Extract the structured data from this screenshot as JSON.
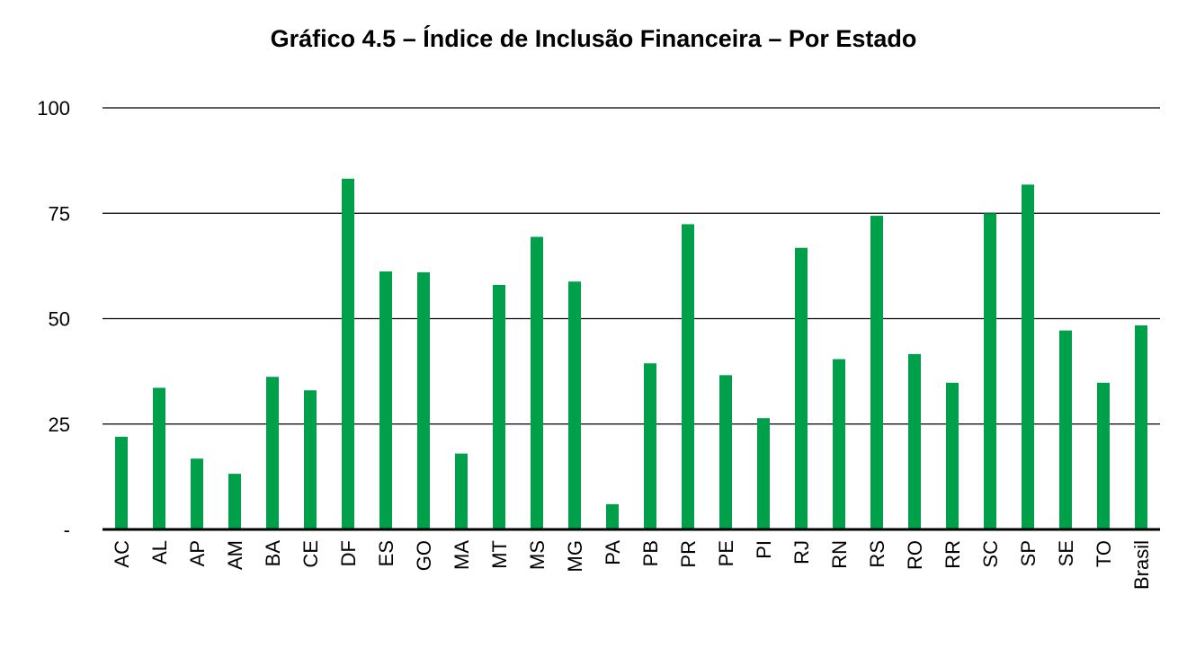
{
  "chart_data": {
    "type": "bar",
    "title": "Gráfico 4.5 – Índice de Inclusão Financeira – Por Estado",
    "xlabel": "",
    "ylabel": "",
    "ylim": [
      0,
      100
    ],
    "yticks": [
      {
        "value": 0,
        "label": "-"
      },
      {
        "value": 25,
        "label": "25"
      },
      {
        "value": 50,
        "label": "50"
      },
      {
        "value": 75,
        "label": "75"
      },
      {
        "value": 100,
        "label": "100"
      }
    ],
    "grid": true,
    "bar_color": "#00A04A",
    "categories": [
      "AC",
      "AL",
      "AP",
      "AM",
      "BA",
      "CE",
      "DF",
      "ES",
      "GO",
      "MA",
      "MT",
      "MS",
      "MG",
      "PA",
      "PB",
      "PR",
      "PE",
      "PI",
      "RJ",
      "RN",
      "RS",
      "RO",
      "RR",
      "SC",
      "SP",
      "SE",
      "TO",
      "Brasil"
    ],
    "values": [
      22,
      33.6,
      16.8,
      13.2,
      36.2,
      33,
      83.2,
      61.2,
      61,
      18,
      58,
      69.4,
      58.8,
      6,
      39.4,
      72.4,
      36.6,
      26.4,
      66.8,
      40.4,
      74.4,
      41.6,
      34.8,
      75,
      81.8,
      47.2,
      34.8,
      48.4
    ]
  }
}
